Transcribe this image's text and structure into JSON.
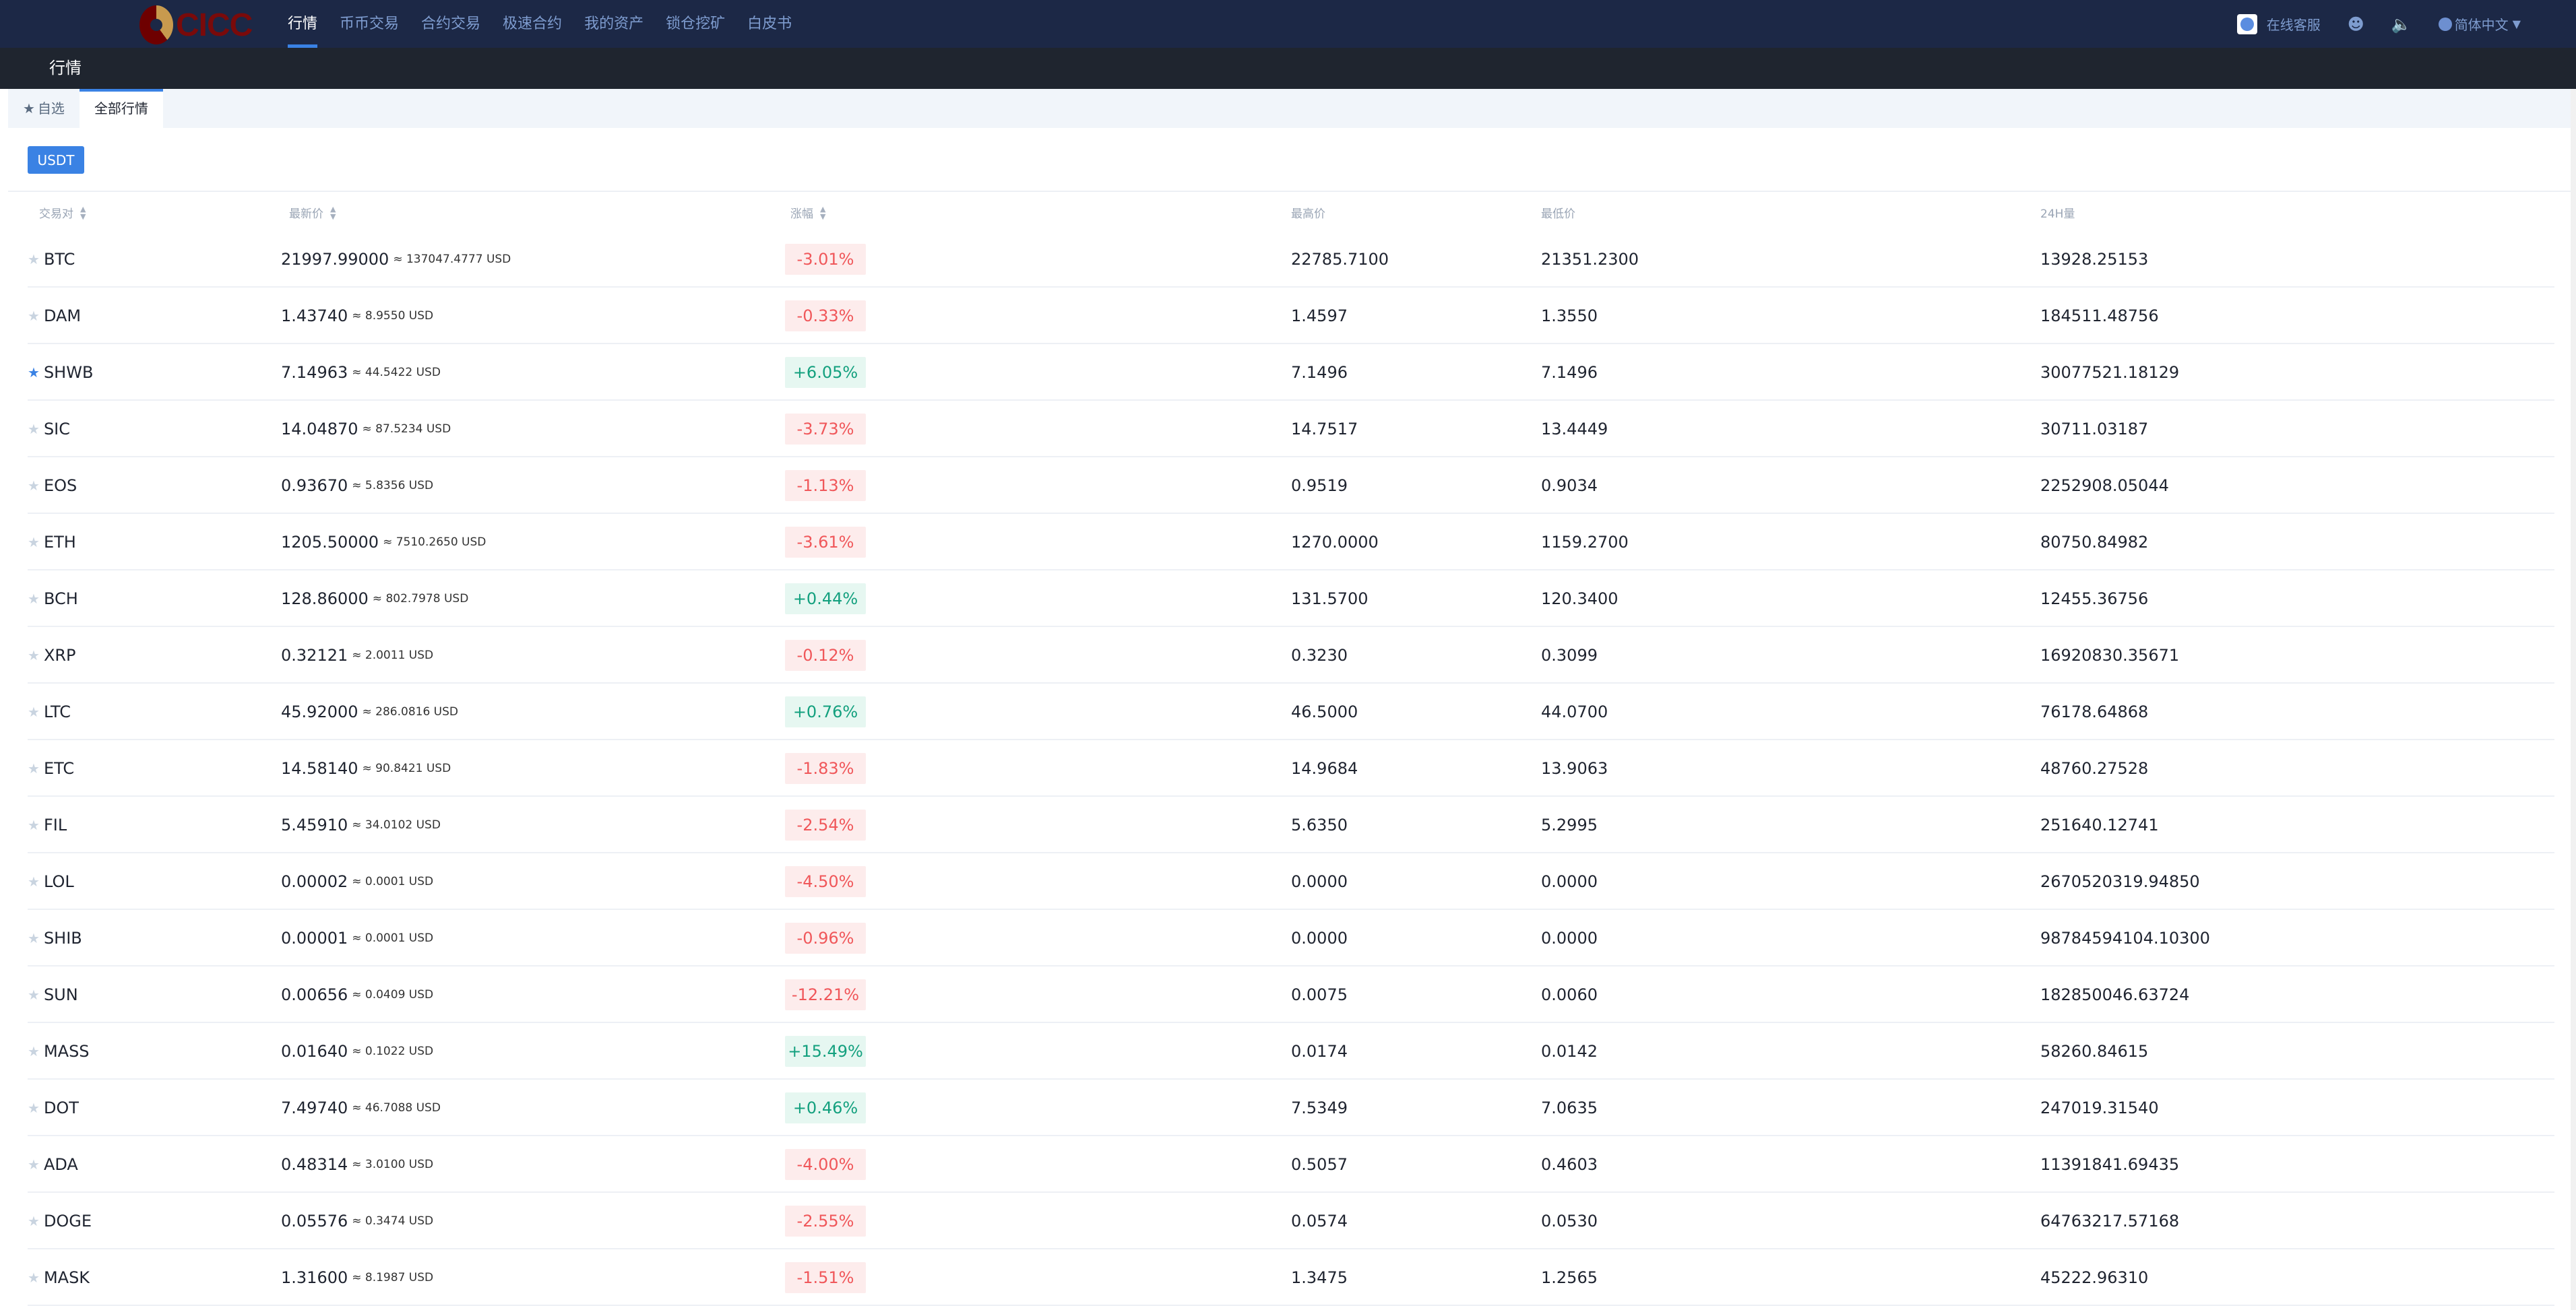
{
  "brand": {
    "logo_text": "CICC"
  },
  "nav": {
    "items": [
      "行情",
      "币币交易",
      "合约交易",
      "极速合约",
      "我的资产",
      "锁仓挖矿",
      "白皮书"
    ],
    "active": 0
  },
  "header_right": {
    "customer_service": "在线客服",
    "language": "简体中文",
    "icons": [
      "customer-service-avatar",
      "user-icon",
      "speaker-icon",
      "globe-icon"
    ]
  },
  "subheader": {
    "title": "行情"
  },
  "tabs": {
    "favorites": "自选",
    "all": "全部行情",
    "active": "all"
  },
  "quote_button": "USDT",
  "table": {
    "headers": {
      "pair": "交易对",
      "price": "最新价",
      "change": "涨幅",
      "high": "最高价",
      "low": "最低价",
      "volume": "24H量"
    },
    "rows": [
      {
        "pair": "BTC",
        "price": "21997.99000",
        "usd": "≈ 137047.4777 USD",
        "change": "-3.01%",
        "high": "22785.7100",
        "low": "21351.2300",
        "volume": "13928.25153",
        "favorite": false
      },
      {
        "pair": "DAM",
        "price": "1.43740",
        "usd": "≈ 8.9550 USD",
        "change": "-0.33%",
        "high": "1.4597",
        "low": "1.3550",
        "volume": "184511.48756",
        "favorite": false
      },
      {
        "pair": "SHWB",
        "price": "7.14963",
        "usd": "≈ 44.5422 USD",
        "change": "+6.05%",
        "high": "7.1496",
        "low": "7.1496",
        "volume": "30077521.18129",
        "favorite": true
      },
      {
        "pair": "SIC",
        "price": "14.04870",
        "usd": "≈ 87.5234 USD",
        "change": "-3.73%",
        "high": "14.7517",
        "low": "13.4449",
        "volume": "30711.03187",
        "favorite": false
      },
      {
        "pair": "EOS",
        "price": "0.93670",
        "usd": "≈ 5.8356 USD",
        "change": "-1.13%",
        "high": "0.9519",
        "low": "0.9034",
        "volume": "2252908.05044",
        "favorite": false
      },
      {
        "pair": "ETH",
        "price": "1205.50000",
        "usd": "≈ 7510.2650 USD",
        "change": "-3.61%",
        "high": "1270.0000",
        "low": "1159.2700",
        "volume": "80750.84982",
        "favorite": false
      },
      {
        "pair": "BCH",
        "price": "128.86000",
        "usd": "≈ 802.7978 USD",
        "change": "+0.44%",
        "high": "131.5700",
        "low": "120.3400",
        "volume": "12455.36756",
        "favorite": false
      },
      {
        "pair": "XRP",
        "price": "0.32121",
        "usd": "≈ 2.0011 USD",
        "change": "-0.12%",
        "high": "0.3230",
        "low": "0.3099",
        "volume": "16920830.35671",
        "favorite": false
      },
      {
        "pair": "LTC",
        "price": "45.92000",
        "usd": "≈ 286.0816 USD",
        "change": "+0.76%",
        "high": "46.5000",
        "low": "44.0700",
        "volume": "76178.64868",
        "favorite": false
      },
      {
        "pair": "ETC",
        "price": "14.58140",
        "usd": "≈ 90.8421 USD",
        "change": "-1.83%",
        "high": "14.9684",
        "low": "13.9063",
        "volume": "48760.27528",
        "favorite": false
      },
      {
        "pair": "FIL",
        "price": "5.45910",
        "usd": "≈ 34.0102 USD",
        "change": "-2.54%",
        "high": "5.6350",
        "low": "5.2995",
        "volume": "251640.12741",
        "favorite": false
      },
      {
        "pair": "LOL",
        "price": "0.00002",
        "usd": "≈ 0.0001 USD",
        "change": "-4.50%",
        "high": "0.0000",
        "low": "0.0000",
        "volume": "2670520319.94850",
        "favorite": false
      },
      {
        "pair": "SHIB",
        "price": "0.00001",
        "usd": "≈ 0.0001 USD",
        "change": "-0.96%",
        "high": "0.0000",
        "low": "0.0000",
        "volume": "98784594104.10300",
        "favorite": false
      },
      {
        "pair": "SUN",
        "price": "0.00656",
        "usd": "≈ 0.0409 USD",
        "change": "-12.21%",
        "high": "0.0075",
        "low": "0.0060",
        "volume": "182850046.63724",
        "favorite": false
      },
      {
        "pair": "MASS",
        "price": "0.01640",
        "usd": "≈ 0.1022 USD",
        "change": "+15.49%",
        "high": "0.0174",
        "low": "0.0142",
        "volume": "58260.84615",
        "favorite": false
      },
      {
        "pair": "DOT",
        "price": "7.49740",
        "usd": "≈ 46.7088 USD",
        "change": "+0.46%",
        "high": "7.5349",
        "low": "7.0635",
        "volume": "247019.31540",
        "favorite": false
      },
      {
        "pair": "ADA",
        "price": "0.48314",
        "usd": "≈ 3.0100 USD",
        "change": "-4.00%",
        "high": "0.5057",
        "low": "0.4603",
        "volume": "11391841.69435",
        "favorite": false
      },
      {
        "pair": "DOGE",
        "price": "0.05576",
        "usd": "≈ 0.3474 USD",
        "change": "-2.55%",
        "high": "0.0574",
        "low": "0.0530",
        "volume": "64763217.57168",
        "favorite": false
      },
      {
        "pair": "MASK",
        "price": "1.31600",
        "usd": "≈ 8.1987 USD",
        "change": "-1.51%",
        "high": "1.3475",
        "low": "1.2565",
        "volume": "45222.96310",
        "favorite": false
      }
    ]
  },
  "colors": {
    "nav_bg": "#1c2846",
    "subheader_bg": "#1f252f",
    "accent": "#3a82e4",
    "down": "#f0575a",
    "up": "#13a07e"
  }
}
